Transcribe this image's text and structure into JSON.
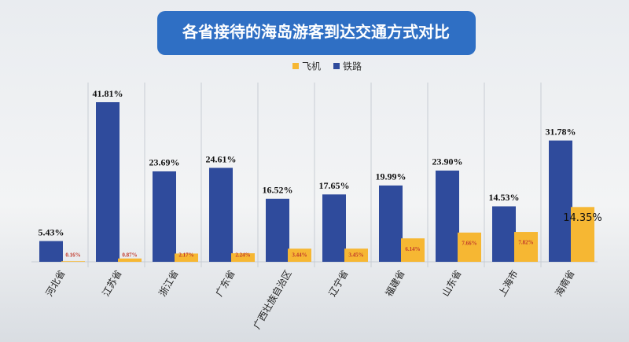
{
  "chart_data": {
    "type": "bar",
    "title": "各省接待的海岛游客到达交通方式对比",
    "categories": [
      "河北省",
      "江苏省",
      "浙江省",
      "广东省",
      "广西壮族自治区",
      "辽宁省",
      "福建省",
      "山东省",
      "上海市",
      "海南省"
    ],
    "series": [
      {
        "name": "铁路",
        "color": "#2f4b9c",
        "values": [
          5.43,
          41.81,
          23.69,
          24.61,
          16.52,
          17.65,
          19.99,
          23.9,
          14.53,
          31.78
        ],
        "value_labels": [
          "5.43%",
          "41.81%",
          "23.69%",
          "24.61%",
          "16.52%",
          "17.65%",
          "19.99%",
          "23.90%",
          "14.53%",
          "31.78%"
        ]
      },
      {
        "name": "飞机",
        "color": "#f6b733",
        "values": [
          0.16,
          0.87,
          2.17,
          2.24,
          3.44,
          3.45,
          6.14,
          7.66,
          7.82,
          14.35
        ],
        "value_labels": [
          "0.16%",
          "0.87%",
          "2.17%",
          "2.24%",
          "3.44%",
          "3.45%",
          "6.14%",
          "7.66%",
          "7.82%",
          "14.35%"
        ]
      }
    ]
  }
}
